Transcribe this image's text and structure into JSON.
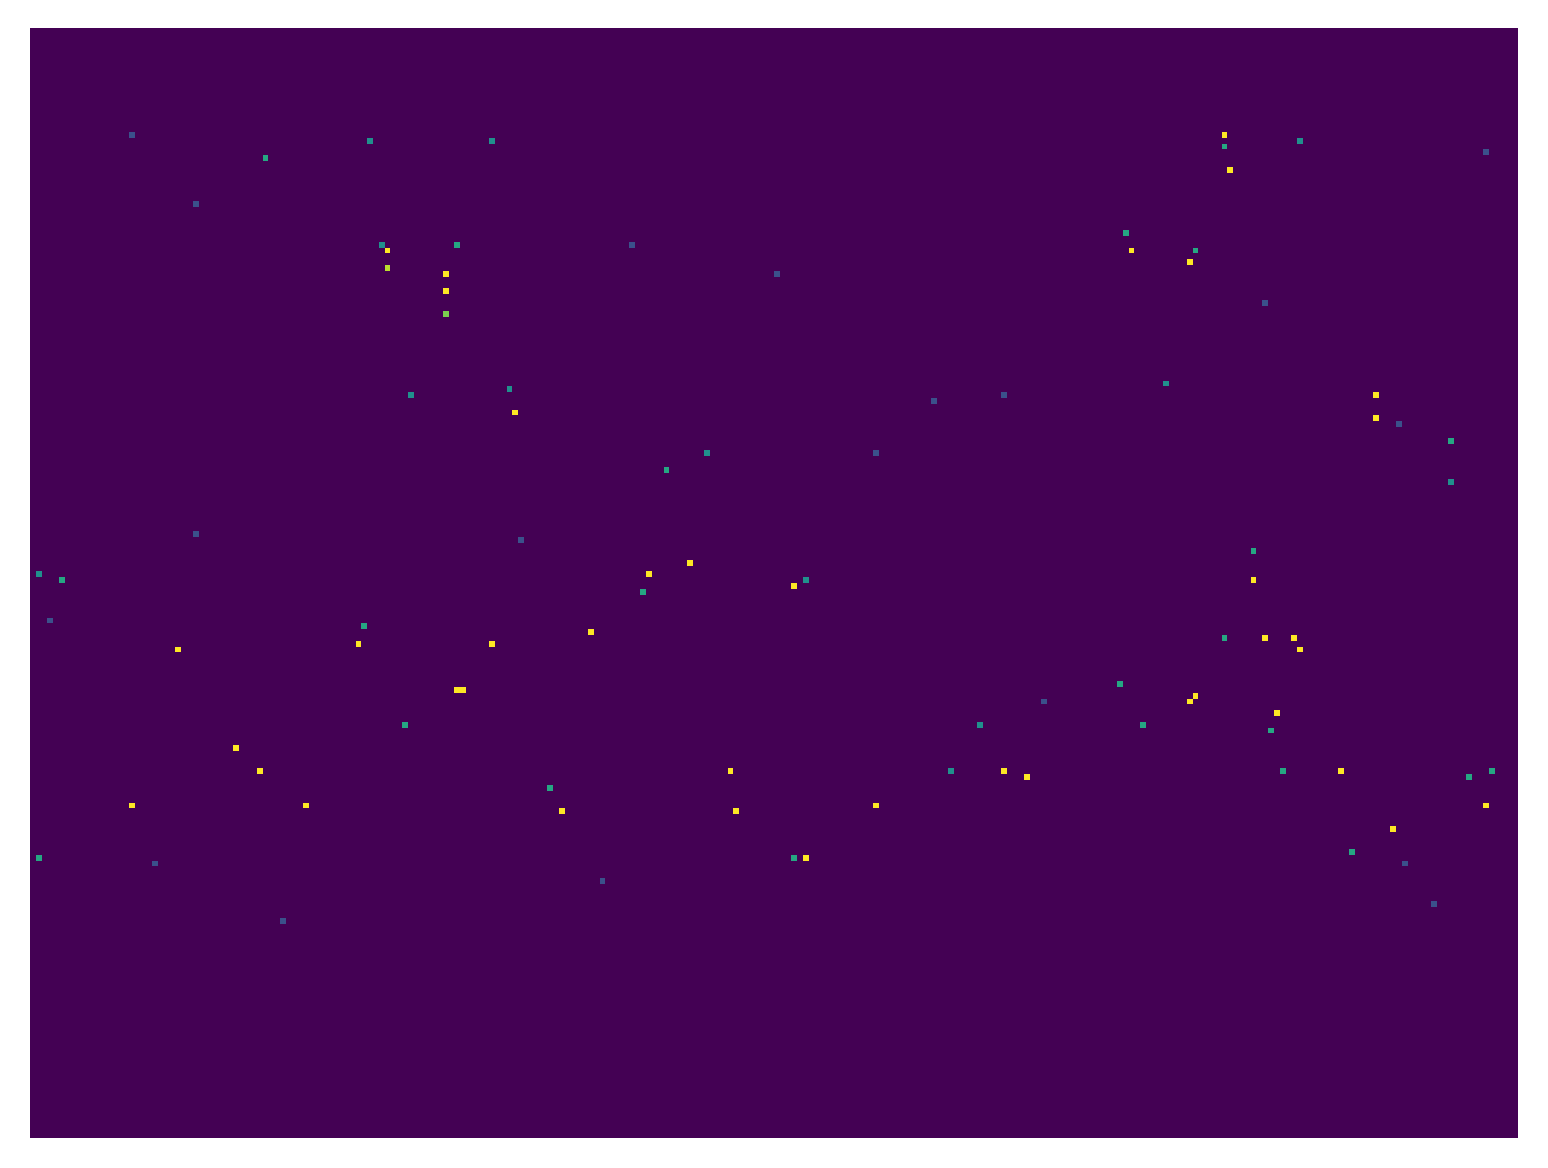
{
  "chart_data": {
    "type": "heatmap",
    "xlim": [
      0,
      256
    ],
    "ylim": [
      0,
      192
    ],
    "vlim": [
      0,
      1
    ],
    "tick_labels": false,
    "x": [
      205,
      206,
      205,
      40,
      58,
      79,
      218,
      61,
      61,
      71,
      71,
      71,
      73,
      60,
      188,
      189,
      200,
      199,
      83,
      82,
      65,
      231,
      231,
      244,
      244,
      109,
      116,
      210,
      210,
      106,
      105,
      113,
      131,
      133,
      25,
      96,
      79,
      56,
      57,
      205,
      217,
      218,
      212,
      73,
      74,
      200,
      199,
      214,
      213,
      64,
      191,
      187,
      163,
      39,
      35,
      167,
      171,
      158,
      225,
      215,
      17,
      47,
      91,
      89,
      121,
      120,
      145,
      250,
      251,
      247,
      133,
      131,
      227,
      234,
      1,
      5,
      1,
      28,
      103,
      128,
      155,
      167,
      212,
      235,
      28,
      84,
      43,
      98,
      241,
      195,
      174,
      145,
      17,
      250,
      3,
      21,
      236
    ],
    "y": [
      18,
      24,
      20,
      22,
      19,
      19,
      19,
      38,
      41,
      42,
      45,
      49,
      37,
      37,
      35,
      38,
      38,
      40,
      66,
      62,
      63,
      63,
      67,
      71,
      78,
      76,
      73,
      95,
      90,
      94,
      97,
      92,
      96,
      95,
      107,
      104,
      106,
      106,
      103,
      105,
      105,
      107,
      105,
      114,
      114,
      115,
      116,
      118,
      121,
      120,
      120,
      113,
      120,
      128,
      124,
      128,
      129,
      128,
      128,
      128,
      134,
      134,
      135,
      131,
      135,
      128,
      134,
      134,
      128,
      129,
      143,
      143,
      142,
      138,
      143,
      95,
      94,
      30,
      37,
      42,
      64,
      63,
      47,
      68,
      87,
      88,
      154,
      147,
      151,
      61,
      116,
      73,
      18,
      21,
      102,
      144,
      144
    ],
    "values": [
      1,
      1,
      0.6,
      0.6,
      0.5,
      0.5,
      0.5,
      1,
      0.9,
      1,
      1,
      0.8,
      0.6,
      0.5,
      0.6,
      1,
      0.6,
      1,
      1,
      0.5,
      0.5,
      1,
      1,
      0.6,
      0.5,
      0.6,
      0.5,
      1,
      0.6,
      1,
      0.6,
      1,
      1,
      0.5,
      1,
      1,
      1,
      1,
      0.6,
      0.6,
      1,
      1,
      1,
      1,
      1,
      1,
      1,
      1,
      0.6,
      0.6,
      0.6,
      0.6,
      0.5,
      1,
      1,
      1,
      1,
      0.5,
      1,
      0.6,
      1,
      1,
      1,
      0.6,
      1,
      1,
      1,
      1,
      0.6,
      0.6,
      1,
      0.6,
      0.6,
      1,
      0.6,
      0.6,
      0.5,
      0.25,
      0.25,
      0.25,
      0.25,
      0.25,
      0.25,
      0.25,
      0.25,
      0.25,
      0.25,
      0.25,
      0.25,
      0.5,
      0.25,
      0.25,
      0.25,
      0.25,
      0.25,
      0.25,
      0.25
    ]
  }
}
